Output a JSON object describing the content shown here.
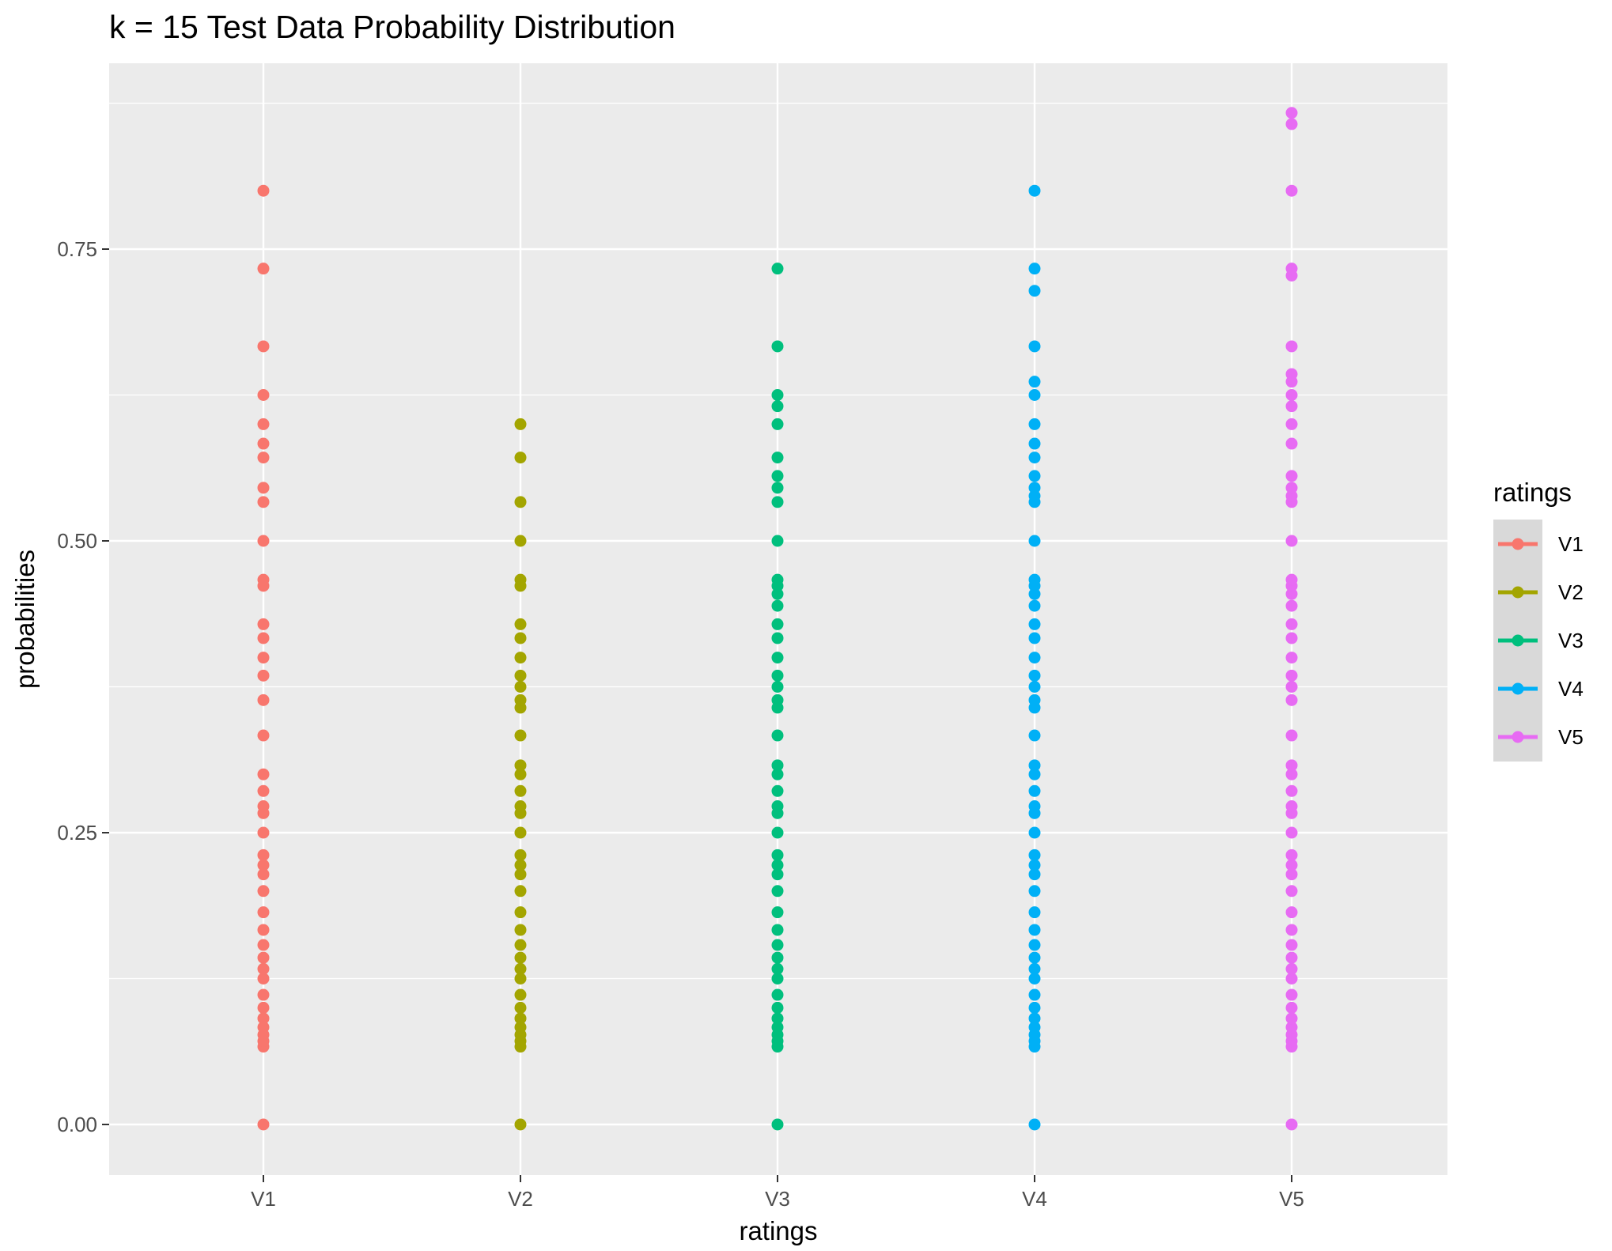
{
  "chart_data": {
    "type": "scatter",
    "title": "k = 15 Test Data Probability Distribution",
    "xlabel": "ratings",
    "ylabel": "probabilities",
    "categories": [
      "V1",
      "V2",
      "V3",
      "V4",
      "V5"
    ],
    "ylim": [
      -0.043,
      0.91
    ],
    "yticks": [
      0.0,
      0.25,
      0.5,
      0.75
    ],
    "ytick_labels": [
      "0.00",
      "0.25",
      "0.50",
      "0.75"
    ],
    "grid": true,
    "legend": {
      "title": "ratings",
      "position": "right"
    },
    "series": [
      {
        "name": "V1",
        "color": "#F8766D",
        "values": [
          0,
          0.0667,
          0.0714,
          0.0769,
          0.0833,
          0.0909,
          0.1,
          0.1111,
          0.125,
          0.1333,
          0.1429,
          0.1538,
          0.1667,
          0.1818,
          0.2,
          0.2143,
          0.2222,
          0.2308,
          0.25,
          0.2667,
          0.2727,
          0.2857,
          0.3,
          0.3333,
          0.3636,
          0.3846,
          0.4,
          0.4167,
          0.4286,
          0.4615,
          0.4667,
          0.5,
          0.5333,
          0.5455,
          0.5714,
          0.5833,
          0.6,
          0.625,
          0.6667,
          0.7333,
          0.8
        ]
      },
      {
        "name": "V2",
        "color": "#A3A500",
        "values": [
          0,
          0.0667,
          0.0714,
          0.0769,
          0.0833,
          0.0909,
          0.1,
          0.1111,
          0.125,
          0.1333,
          0.1429,
          0.1538,
          0.1667,
          0.1818,
          0.2,
          0.2143,
          0.2222,
          0.2308,
          0.25,
          0.2667,
          0.2727,
          0.2857,
          0.3,
          0.3077,
          0.3333,
          0.3571,
          0.3636,
          0.375,
          0.3846,
          0.4,
          0.4167,
          0.4286,
          0.4615,
          0.4667,
          0.5,
          0.5333,
          0.5714,
          0.6
        ]
      },
      {
        "name": "V3",
        "color": "#00BF7D",
        "values": [
          0,
          0.0667,
          0.0714,
          0.0769,
          0.0833,
          0.0909,
          0.1,
          0.1111,
          0.125,
          0.1333,
          0.1429,
          0.1538,
          0.1667,
          0.1818,
          0.2,
          0.2143,
          0.2222,
          0.2308,
          0.25,
          0.2667,
          0.2727,
          0.2857,
          0.3,
          0.3077,
          0.3333,
          0.3571,
          0.3636,
          0.375,
          0.3846,
          0.4,
          0.4167,
          0.4286,
          0.4444,
          0.4545,
          0.4615,
          0.4667,
          0.5,
          0.5333,
          0.5455,
          0.5556,
          0.5714,
          0.6,
          0.6154,
          0.625,
          0.6667,
          0.7333
        ]
      },
      {
        "name": "V4",
        "color": "#00B0F6",
        "values": [
          0,
          0.0667,
          0.0714,
          0.0769,
          0.0833,
          0.0909,
          0.1,
          0.1111,
          0.125,
          0.1333,
          0.1429,
          0.1538,
          0.1667,
          0.1818,
          0.2,
          0.2143,
          0.2222,
          0.2308,
          0.25,
          0.2667,
          0.2727,
          0.2857,
          0.3,
          0.3077,
          0.3333,
          0.3571,
          0.3636,
          0.375,
          0.3846,
          0.4,
          0.4167,
          0.4286,
          0.4444,
          0.4545,
          0.4615,
          0.4667,
          0.5,
          0.5333,
          0.5385,
          0.5455,
          0.5556,
          0.5714,
          0.5833,
          0.6,
          0.625,
          0.6364,
          0.6667,
          0.7143,
          0.7333,
          0.8
        ]
      },
      {
        "name": "V5",
        "color": "#E76BF3",
        "values": [
          0,
          0.0667,
          0.0714,
          0.0769,
          0.0833,
          0.0909,
          0.1,
          0.1111,
          0.125,
          0.1333,
          0.1429,
          0.1538,
          0.1667,
          0.1818,
          0.2,
          0.2143,
          0.2222,
          0.2308,
          0.25,
          0.2667,
          0.2727,
          0.2857,
          0.3,
          0.3077,
          0.3333,
          0.3636,
          0.375,
          0.3846,
          0.4,
          0.4167,
          0.4286,
          0.4444,
          0.4545,
          0.4615,
          0.4667,
          0.5,
          0.5333,
          0.5385,
          0.5455,
          0.5556,
          0.5833,
          0.6,
          0.6154,
          0.625,
          0.6364,
          0.6429,
          0.6667,
          0.7273,
          0.7333,
          0.8,
          0.8571,
          0.8667
        ]
      }
    ]
  }
}
